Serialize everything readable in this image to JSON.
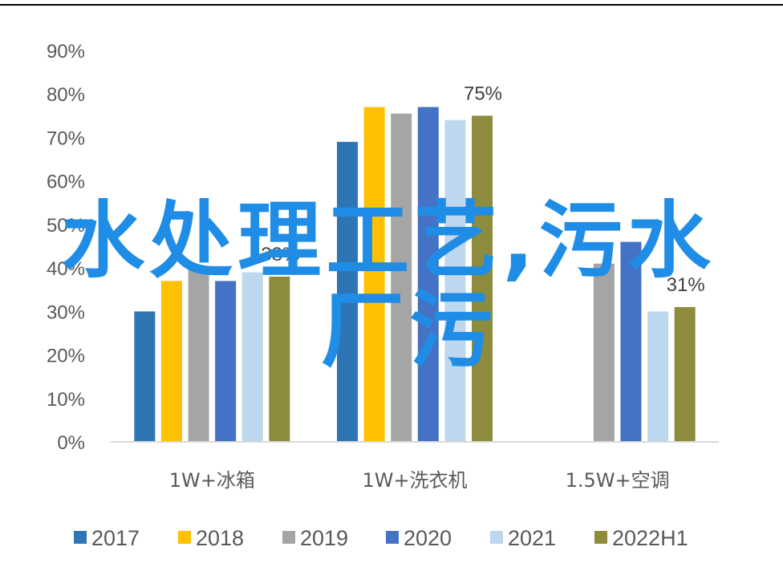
{
  "chart_data": {
    "type": "bar",
    "title": "",
    "xlabel": "",
    "ylabel": "",
    "ylim": [
      0,
      0.9
    ],
    "yticks": [
      "0%",
      "10%",
      "20%",
      "30%",
      "40%",
      "50%",
      "60%",
      "70%",
      "80%",
      "90%"
    ],
    "grid": false,
    "legend_position": "bottom",
    "categories": [
      "1W+冰箱",
      "1W+洗衣机",
      "1.5W+空调"
    ],
    "series": [
      {
        "name": "2017",
        "color": "#2e75b6",
        "values": [
          0.3,
          0.69,
          null
        ]
      },
      {
        "name": "2018",
        "color": "#ffc000",
        "values": [
          0.37,
          0.77,
          null
        ]
      },
      {
        "name": "2019",
        "color": "#a5a5a5",
        "values": [
          0.4,
          0.755,
          0.41
        ]
      },
      {
        "name": "2020",
        "color": "#4472c4",
        "values": [
          0.37,
          0.77,
          0.46
        ]
      },
      {
        "name": "2021",
        "color": "#bdd7ee",
        "values": [
          0.39,
          0.74,
          0.3
        ]
      },
      {
        "name": "2022H1",
        "color": "#8c8c3c",
        "values": [
          0.38,
          0.75,
          0.31
        ]
      }
    ],
    "data_labels": [
      {
        "category_index": 0,
        "series_index": 5,
        "text": "38%"
      },
      {
        "category_index": 1,
        "series_index": 5,
        "text": "75%"
      },
      {
        "category_index": 2,
        "series_index": 5,
        "text": "31%"
      }
    ]
  },
  "watermark": {
    "line1": "水处理工艺,污水",
    "line2": "厂污",
    "color": "#1f8de6"
  }
}
